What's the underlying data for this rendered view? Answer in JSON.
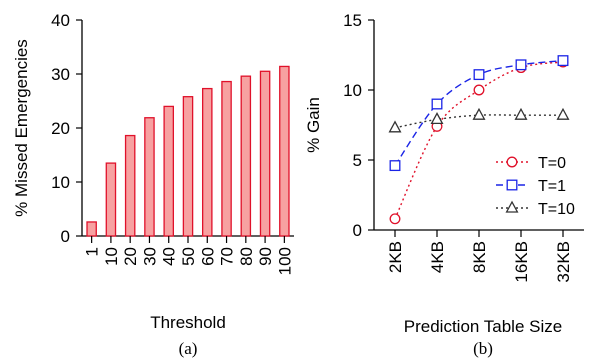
{
  "charts": {
    "a": {
      "caption": "(a)",
      "chart_data": {
        "type": "bar",
        "categories": [
          "1",
          "10",
          "20",
          "30",
          "40",
          "50",
          "60",
          "70",
          "80",
          "90",
          "100"
        ],
        "values": [
          2.6,
          13.5,
          18.6,
          21.9,
          24.0,
          25.8,
          27.3,
          28.6,
          29.6,
          30.5,
          31.4
        ],
        "xlabel": "Threshold",
        "ylabel": "% Missed Emergencies",
        "ylim": [
          0,
          40
        ],
        "yticks": [
          "0",
          "10",
          "20",
          "30",
          "40"
        ],
        "grid": false,
        "bar_fill": "#f7a1a1",
        "bar_stroke": "#e0112a"
      }
    },
    "b": {
      "caption": "(b)",
      "chart_data": {
        "type": "line",
        "categories": [
          "2KB",
          "4KB",
          "8KB",
          "16KB",
          "32KB"
        ],
        "series": [
          {
            "name": "T=0",
            "values": [
              0.8,
              7.4,
              10.0,
              11.6,
              12.0
            ],
            "color": "#e0112a",
            "marker": "circle",
            "dash": "dotted"
          },
          {
            "name": "T=1",
            "values": [
              4.6,
              9.0,
              11.1,
              11.8,
              12.1
            ],
            "color": "#1a24e6",
            "marker": "square",
            "dash": "dashed"
          },
          {
            "name": "T=10",
            "values": [
              7.3,
              7.9,
              8.2,
              8.2,
              8.2
            ],
            "color": "#333333",
            "marker": "triangle",
            "dash": "dotted"
          }
        ],
        "xlabel": "Prediction Table Size",
        "ylabel": "% Gain",
        "ylim": [
          0,
          15
        ],
        "yticks": [
          "0",
          "5",
          "10",
          "15"
        ],
        "legend_position": "bottom-right",
        "grid": false
      }
    }
  }
}
